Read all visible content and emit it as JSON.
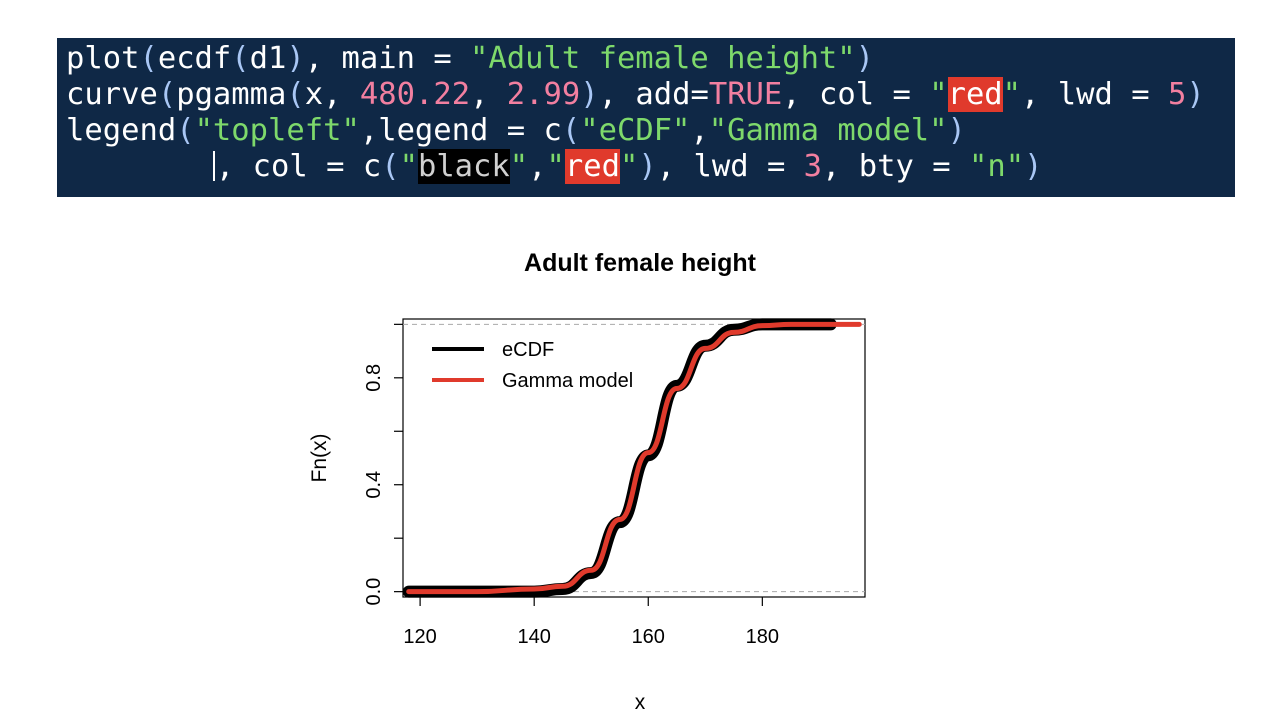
{
  "code": {
    "line1": {
      "fn1": "plot",
      "fn2": "ecdf",
      "arg": "d1",
      "main_kw": "main",
      "main_str": "\"Adult female height\""
    },
    "line2": {
      "fn": "curve",
      "fn2": "pgamma",
      "x": "x",
      "n1": "480.22",
      "n2": "2.99",
      "add_kw": "add",
      "true": "TRUE",
      "col_kw": "col",
      "q": "\"",
      "red": "red",
      "lwd_kw": "lwd",
      "lwd": "5"
    },
    "line3": {
      "fn": "legend",
      "pos": "\"topleft\"",
      "legend_kw": "legend",
      "c": "c",
      "s1": "\"eCDF\"",
      "s2": "\"Gamma model\""
    },
    "line4": {
      "col_kw": "col",
      "c": "c",
      "q": "\"",
      "black": "black",
      "red": "red",
      "lwd_kw": "lwd",
      "lwd": "3",
      "bty_kw": "bty",
      "bty": "\"n\""
    }
  },
  "colors": {
    "editor_bg": "#0f2846",
    "string": "#7ed96b",
    "number": "#f27fa0",
    "highlight_red": "#e03a2c"
  },
  "chart_data": {
    "type": "line",
    "title": "Adult female height",
    "xlabel": "x",
    "ylabel": "Fn(x)",
    "xlim": [
      117,
      198
    ],
    "ylim": [
      -0.02,
      1.02
    ],
    "xticks": [
      "120",
      "140",
      "160",
      "180"
    ],
    "yticks": [
      "0.0",
      "0.4",
      "0.8"
    ],
    "legend_position": "topleft",
    "gamma_model": {
      "shape": 480.22,
      "rate": 2.99
    },
    "series": [
      {
        "name": "eCDF",
        "color": "#000000",
        "x": [
          118,
          123,
          136,
          138,
          140,
          145,
          150,
          155,
          160,
          165,
          170,
          175,
          180,
          185,
          190,
          192
        ],
        "values": [
          0.0,
          0.0,
          0.0,
          0.0,
          0.0,
          0.01,
          0.07,
          0.26,
          0.51,
          0.77,
          0.92,
          0.98,
          1.0,
          1.0,
          1.0,
          1.0
        ]
      },
      {
        "name": "Gamma model",
        "color": "#e03a2c",
        "x": [
          118,
          130,
          140,
          145,
          150,
          155,
          160,
          165,
          170,
          175,
          180,
          185,
          197
        ],
        "values": [
          0.0,
          0.0,
          0.01,
          0.02,
          0.08,
          0.27,
          0.52,
          0.76,
          0.91,
          0.97,
          0.995,
          1.0,
          1.0
        ]
      }
    ]
  }
}
